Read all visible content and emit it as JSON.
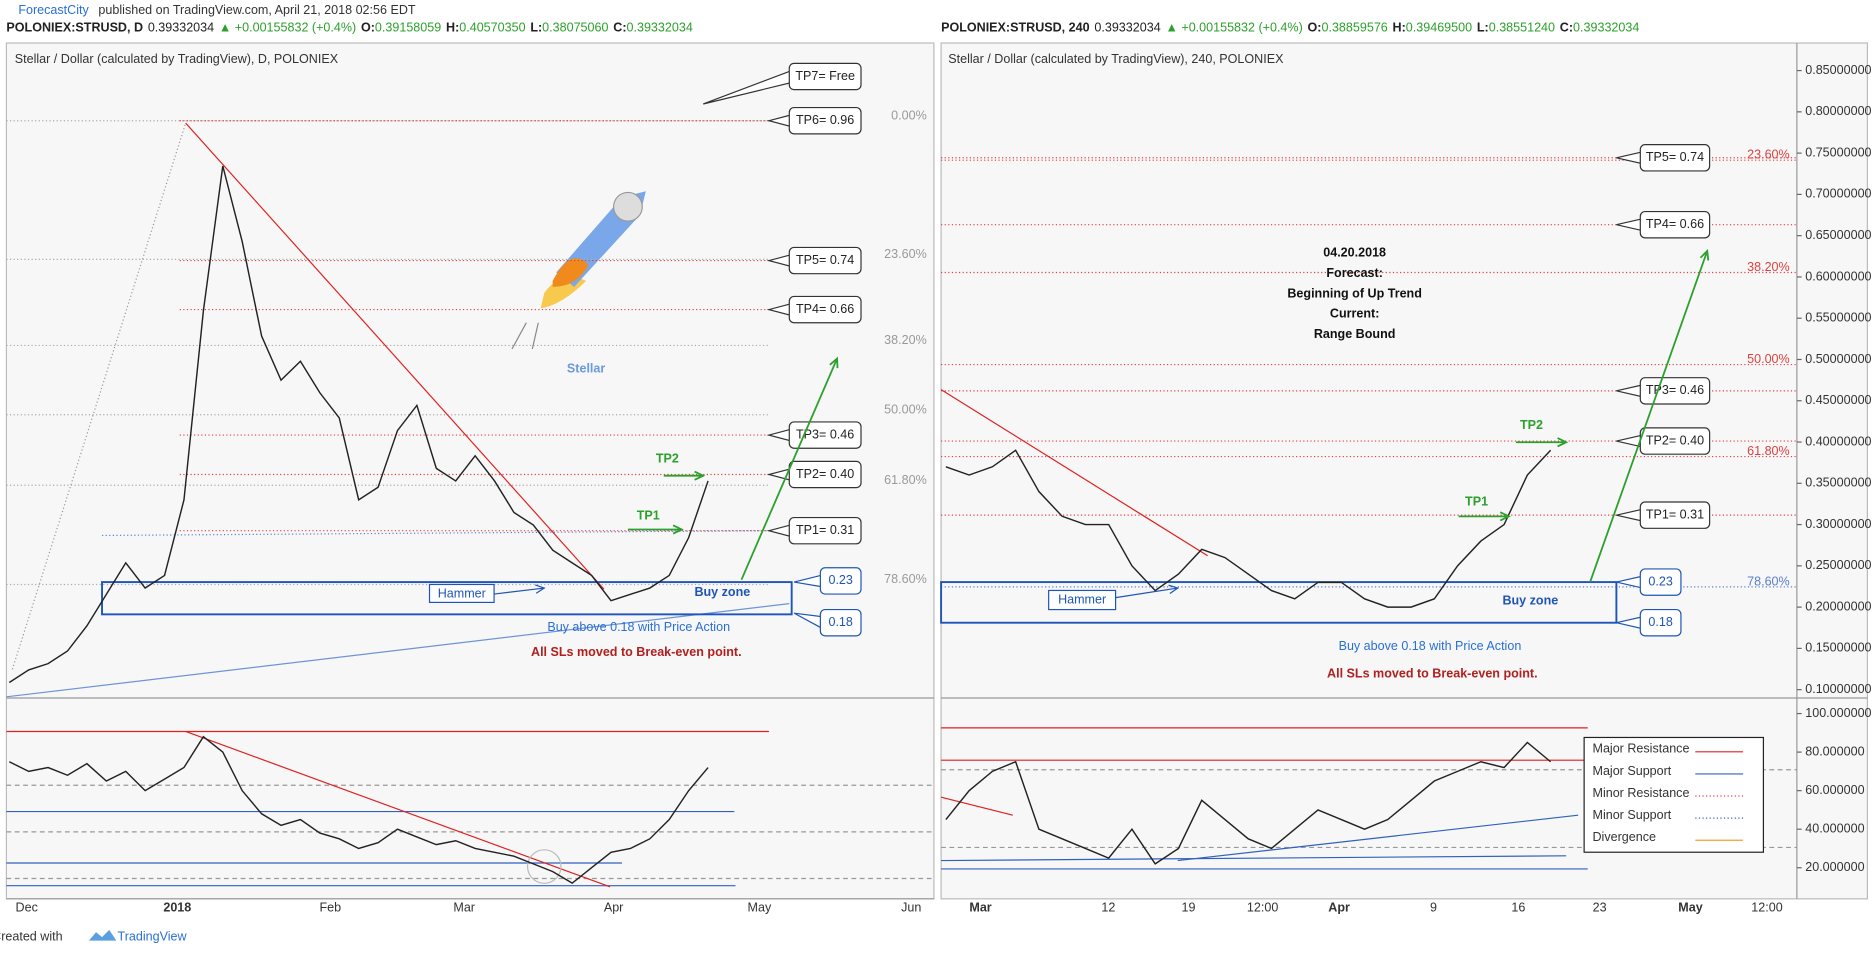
{
  "header": {
    "publisher": "ForecastCity",
    "published": "published on TradingView.com, April 21, 2018 02:56 EDT"
  },
  "left_chart": {
    "symbol": "POLONIEX:STRUSD, D",
    "last": "0.39332034",
    "change": "▲ +0.00155832 (+0.4%)",
    "ohlc": [
      {
        "key": "O:",
        "value": "0.39158059"
      },
      {
        "key": "H:",
        "value": "0.40570350"
      },
      {
        "key": "L:",
        "value": "0.38075060"
      },
      {
        "key": "C:",
        "value": "0.39332034"
      }
    ],
    "title": "Stellar / Dollar (calculated by TradingView), D, POLONIEX",
    "tp_boxes": [
      "TP7= Free",
      "TP6= 0.96",
      "TP5= 0.74",
      "TP4= 0.66",
      "TP3= 0.46",
      "TP2= 0.40",
      "TP1= 0.31"
    ],
    "zone_boxes": [
      "0.23",
      "0.18"
    ],
    "fib_levels": [
      "0.00%",
      "23.60%",
      "38.20%",
      "50.00%",
      "61.80%",
      "78.60%"
    ],
    "name": "Stellar",
    "hammer": "Hammer",
    "buy_zone": "Buy zone",
    "buy_note": "Buy above 0.18 with Price Action",
    "sl_note": "All SLs moved to Break-even point.",
    "tp1_label": "TP1",
    "tp2_label": "TP2",
    "closes": [
      0.07,
      0.09,
      0.1,
      0.12,
      0.16,
      0.21,
      0.26,
      0.22,
      0.24,
      0.36,
      0.66,
      0.89,
      0.77,
      0.62,
      0.55,
      0.58,
      0.53,
      0.49,
      0.36,
      0.38,
      0.47,
      0.51,
      0.41,
      0.39,
      0.43,
      0.39,
      0.34,
      0.32,
      0.28,
      0.26,
      0.24,
      0.2,
      0.21,
      0.22,
      0.24,
      0.3,
      0.39
    ],
    "oscillator": [
      75,
      70,
      72,
      68,
      74,
      65,
      70,
      60,
      66,
      72,
      88,
      80,
      60,
      48,
      42,
      45,
      38,
      35,
      30,
      33,
      40,
      36,
      32,
      34,
      30,
      28,
      26,
      22,
      18,
      12,
      20,
      28,
      30,
      35,
      45,
      60,
      72
    ],
    "x_labels": [
      "Dec",
      "2018",
      "Feb",
      "Mar",
      "Apr",
      "May",
      "Jun"
    ]
  },
  "right_chart": {
    "symbol": "POLONIEX:STRUSD, 240",
    "last": "0.39332034",
    "change": "▲ +0.00155832 (+0.4%)",
    "ohlc": [
      {
        "key": "O:",
        "value": "0.38859576"
      },
      {
        "key": "H:",
        "value": "0.39469500"
      },
      {
        "key": "L:",
        "value": "0.38551240"
      },
      {
        "key": "C:",
        "value": "0.39332034"
      }
    ],
    "title": "Stellar / Dollar (calculated by TradingView), 240, POLONIEX",
    "forecast": [
      "04.20.2018",
      "Forecast:",
      "Beginning of Up Trend",
      "Current:",
      "Range Bound"
    ],
    "tp_boxes": [
      "TP5= 0.74",
      "TP4= 0.66",
      "TP3= 0.46",
      "TP2= 0.40",
      "TP1= 0.31"
    ],
    "zone_boxes": [
      "0.23",
      "0.18"
    ],
    "fib_levels": [
      "23.60%",
      "38.20%",
      "50.00%",
      "61.80%",
      "78.60%"
    ],
    "hammer": "Hammer",
    "buy_zone": "Buy zone",
    "buy_note": "Buy above 0.18 with Price Action",
    "sl_note": "All SLs moved to Break-even point.",
    "tp1_label": "TP1",
    "tp2_label": "TP2",
    "closes": [
      0.37,
      0.36,
      0.37,
      0.39,
      0.34,
      0.31,
      0.3,
      0.3,
      0.25,
      0.22,
      0.24,
      0.27,
      0.26,
      0.24,
      0.22,
      0.21,
      0.23,
      0.23,
      0.21,
      0.2,
      0.2,
      0.21,
      0.25,
      0.28,
      0.3,
      0.36,
      0.39
    ],
    "oscillator": [
      45,
      60,
      70,
      75,
      40,
      35,
      30,
      25,
      40,
      22,
      30,
      55,
      45,
      35,
      30,
      40,
      50,
      45,
      40,
      45,
      55,
      65,
      70,
      75,
      72,
      85,
      75
    ],
    "price_ticks": [
      {
        "value": 0.85,
        "label": "0.85000000"
      },
      {
        "value": 0.8,
        "label": "0.80000000"
      },
      {
        "value": 0.75,
        "label": "0.75000000"
      },
      {
        "value": 0.7,
        "label": "0.70000000"
      },
      {
        "value": 0.65,
        "label": "0.65000000"
      },
      {
        "value": 0.6,
        "label": "0.60000000"
      },
      {
        "value": 0.55,
        "label": "0.55000000"
      },
      {
        "value": 0.5,
        "label": "0.50000000"
      },
      {
        "value": 0.45,
        "label": "0.45000000"
      },
      {
        "value": 0.4,
        "label": "0.40000000"
      },
      {
        "value": 0.35,
        "label": "0.35000000"
      },
      {
        "value": 0.3,
        "label": "0.30000000"
      },
      {
        "value": 0.25,
        "label": "0.25000000"
      },
      {
        "value": 0.2,
        "label": "0.20000000"
      },
      {
        "value": 0.15,
        "label": "0.15000000"
      },
      {
        "value": 0.1,
        "label": "0.10000000"
      }
    ],
    "osc_ticks": [
      {
        "value": 100,
        "label": "100.000000"
      },
      {
        "value": 80,
        "label": "80.000000"
      },
      {
        "value": 60,
        "label": "60.000000"
      },
      {
        "value": 40,
        "label": "40.000000"
      },
      {
        "value": 20,
        "label": "20.000000"
      }
    ],
    "legend": [
      "Major Resistance",
      "Major Support",
      "Minor Resistance",
      "Minor Support",
      "Divergence"
    ],
    "x_labels": [
      "Mar",
      "12",
      "19",
      "12:00",
      "Apr",
      "9",
      "16",
      "23",
      "May",
      "12:00"
    ]
  },
  "footer": {
    "created": "Created with",
    "brand": "TradingView"
  }
}
